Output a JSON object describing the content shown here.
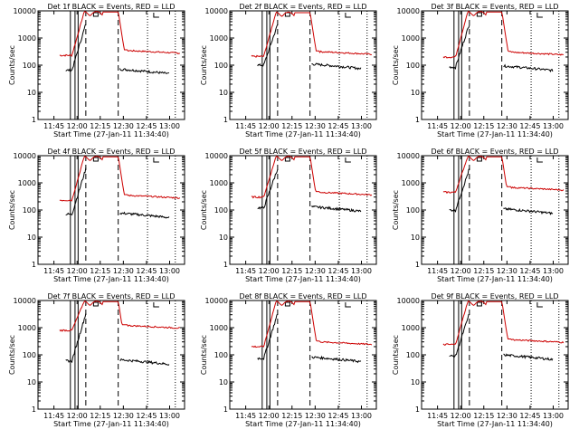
{
  "colors": {
    "events": "#000000",
    "lld": "#cc0000",
    "axes": "#000000",
    "background": "#ffffff"
  },
  "chart_data": [
    {
      "type": "line",
      "title": "Det 1f BLACK = Events, RED = LLD",
      "xlabel": "Start Time (27-Jan-11 11:34:40)",
      "ylabel": "Counts/sec",
      "yscale": "log",
      "ylim": [
        1,
        10000
      ],
      "x_ticks": [
        "11:45",
        "12:00",
        "12:15",
        "12:30",
        "12:45",
        "13:00"
      ],
      "y_ticks": [
        "1",
        "10",
        "100",
        "1000",
        "10000"
      ],
      "baseline_red": 230,
      "peak_red": 9500,
      "baseline_black": 65
    },
    {
      "type": "line",
      "title": "Det 2f BLACK = Events, RED = LLD",
      "xlabel": "Start Time (27-Jan-11 11:34:40)",
      "ylabel": "Counts/sec",
      "yscale": "log",
      "ylim": [
        1,
        10000
      ],
      "x_ticks": [
        "11:45",
        "12:00",
        "12:15",
        "12:30",
        "12:45",
        "13:00"
      ],
      "y_ticks": [
        "1",
        "10",
        "100",
        "1000",
        "10000"
      ],
      "baseline_red": 210,
      "peak_red": 9000,
      "baseline_black": 100
    },
    {
      "type": "line",
      "title": "Det 3f BLACK = Events, RED = LLD",
      "xlabel": "Start Time (27-Jan-11 11:34:40)",
      "ylabel": "Counts/sec",
      "yscale": "log",
      "ylim": [
        1,
        10000
      ],
      "x_ticks": [
        "11:45",
        "12:00",
        "12:15",
        "12:30",
        "12:45",
        "13:00"
      ],
      "y_ticks": [
        "1",
        "10",
        "100",
        "1000",
        "10000"
      ],
      "baseline_red": 200,
      "peak_red": 9500,
      "baseline_black": 85
    },
    {
      "type": "line",
      "title": "Det 4f BLACK = Events, RED = LLD",
      "xlabel": "Start Time (27-Jan-11 11:34:40)",
      "ylabel": "Counts/sec",
      "yscale": "log",
      "ylim": [
        1,
        10000
      ],
      "x_ticks": [
        "11:45",
        "12:00",
        "12:15",
        "12:30",
        "12:45",
        "13:00"
      ],
      "y_ticks": [
        "1",
        "10",
        "100",
        "1000",
        "10000"
      ],
      "baseline_red": 230,
      "peak_red": 9500,
      "baseline_black": 70
    },
    {
      "type": "line",
      "title": "Det 5f BLACK = Events, RED = LLD",
      "xlabel": "Start Time (27-Jan-11 11:34:40)",
      "ylabel": "Counts/sec",
      "yscale": "log",
      "ylim": [
        1,
        10000
      ],
      "x_ticks": [
        "11:45",
        "12:00",
        "12:15",
        "12:30",
        "12:45",
        "13:00"
      ],
      "y_ticks": [
        "1",
        "10",
        "100",
        "1000",
        "10000"
      ],
      "baseline_red": 300,
      "peak_red": 9500,
      "baseline_black": 120
    },
    {
      "type": "line",
      "title": "Det 6f BLACK = Events, RED = LLD",
      "xlabel": "Start Time (27-Jan-11 11:34:40)",
      "ylabel": "Counts/sec",
      "yscale": "log",
      "ylim": [
        1,
        10000
      ],
      "x_ticks": [
        "11:45",
        "12:00",
        "12:15",
        "12:30",
        "12:45",
        "13:00"
      ],
      "y_ticks": [
        "1",
        "10",
        "100",
        "1000",
        "10000"
      ],
      "baseline_red": 450,
      "peak_red": 9500,
      "baseline_black": 100
    },
    {
      "type": "line",
      "title": "Det 7f BLACK = Events, RED = LLD",
      "xlabel": "Start Time (27-Jan-11 11:34:40)",
      "ylabel": "Counts/sec",
      "yscale": "log",
      "ylim": [
        1,
        10000
      ],
      "x_ticks": [
        "11:45",
        "12:00",
        "12:15",
        "12:30",
        "12:45",
        "13:00"
      ],
      "y_ticks": [
        "1",
        "10",
        "100",
        "1000",
        "10000"
      ],
      "baseline_red": 800,
      "peak_red": 9500,
      "baseline_black": 60
    },
    {
      "type": "line",
      "title": "Det 8f BLACK = Events, RED = LLD",
      "xlabel": "Start Time (27-Jan-11 11:34:40)",
      "ylabel": "Counts/sec",
      "yscale": "log",
      "ylim": [
        1,
        10000
      ],
      "x_ticks": [
        "11:45",
        "12:00",
        "12:15",
        "12:30",
        "12:45",
        "13:00"
      ],
      "y_ticks": [
        "1",
        "10",
        "100",
        "1000",
        "10000"
      ],
      "baseline_red": 200,
      "peak_red": 9500,
      "baseline_black": 75
    },
    {
      "type": "line",
      "title": "Det 9f BLACK = Events, RED = LLD",
      "xlabel": "Start Time (27-Jan-11 11:34:40)",
      "ylabel": "Counts/sec",
      "yscale": "log",
      "ylim": [
        1,
        10000
      ],
      "x_ticks": [
        "11:45",
        "12:00",
        "12:15",
        "12:30",
        "12:45",
        "13:00"
      ],
      "y_ticks": [
        "1",
        "10",
        "100",
        "1000",
        "10000"
      ],
      "baseline_red": 240,
      "peak_red": 9500,
      "baseline_black": 90
    }
  ]
}
